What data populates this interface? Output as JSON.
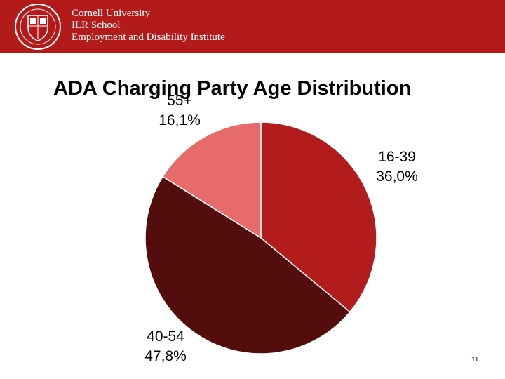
{
  "header": {
    "org_line1": "Cornell University",
    "org_line2": "ILR School",
    "org_line3": "Employment and Disability Institute",
    "color": "#b31b1b",
    "logo": "cornell-university-seal"
  },
  "chart_data": {
    "type": "pie",
    "title": "ADA Charging Party Age Distribution",
    "slices": [
      {
        "name": "16-39",
        "value": 36.0,
        "display": "36,0%",
        "color": "#b21c1c"
      },
      {
        "name": "40-54",
        "value": 47.8,
        "display": "47,8%",
        "color": "#540d0d"
      },
      {
        "name": "55+",
        "value": 16.1,
        "display": "16,1%",
        "color": "#e86b6b"
      }
    ],
    "legend": "none",
    "data_labels": "outside"
  },
  "page_number": "11"
}
